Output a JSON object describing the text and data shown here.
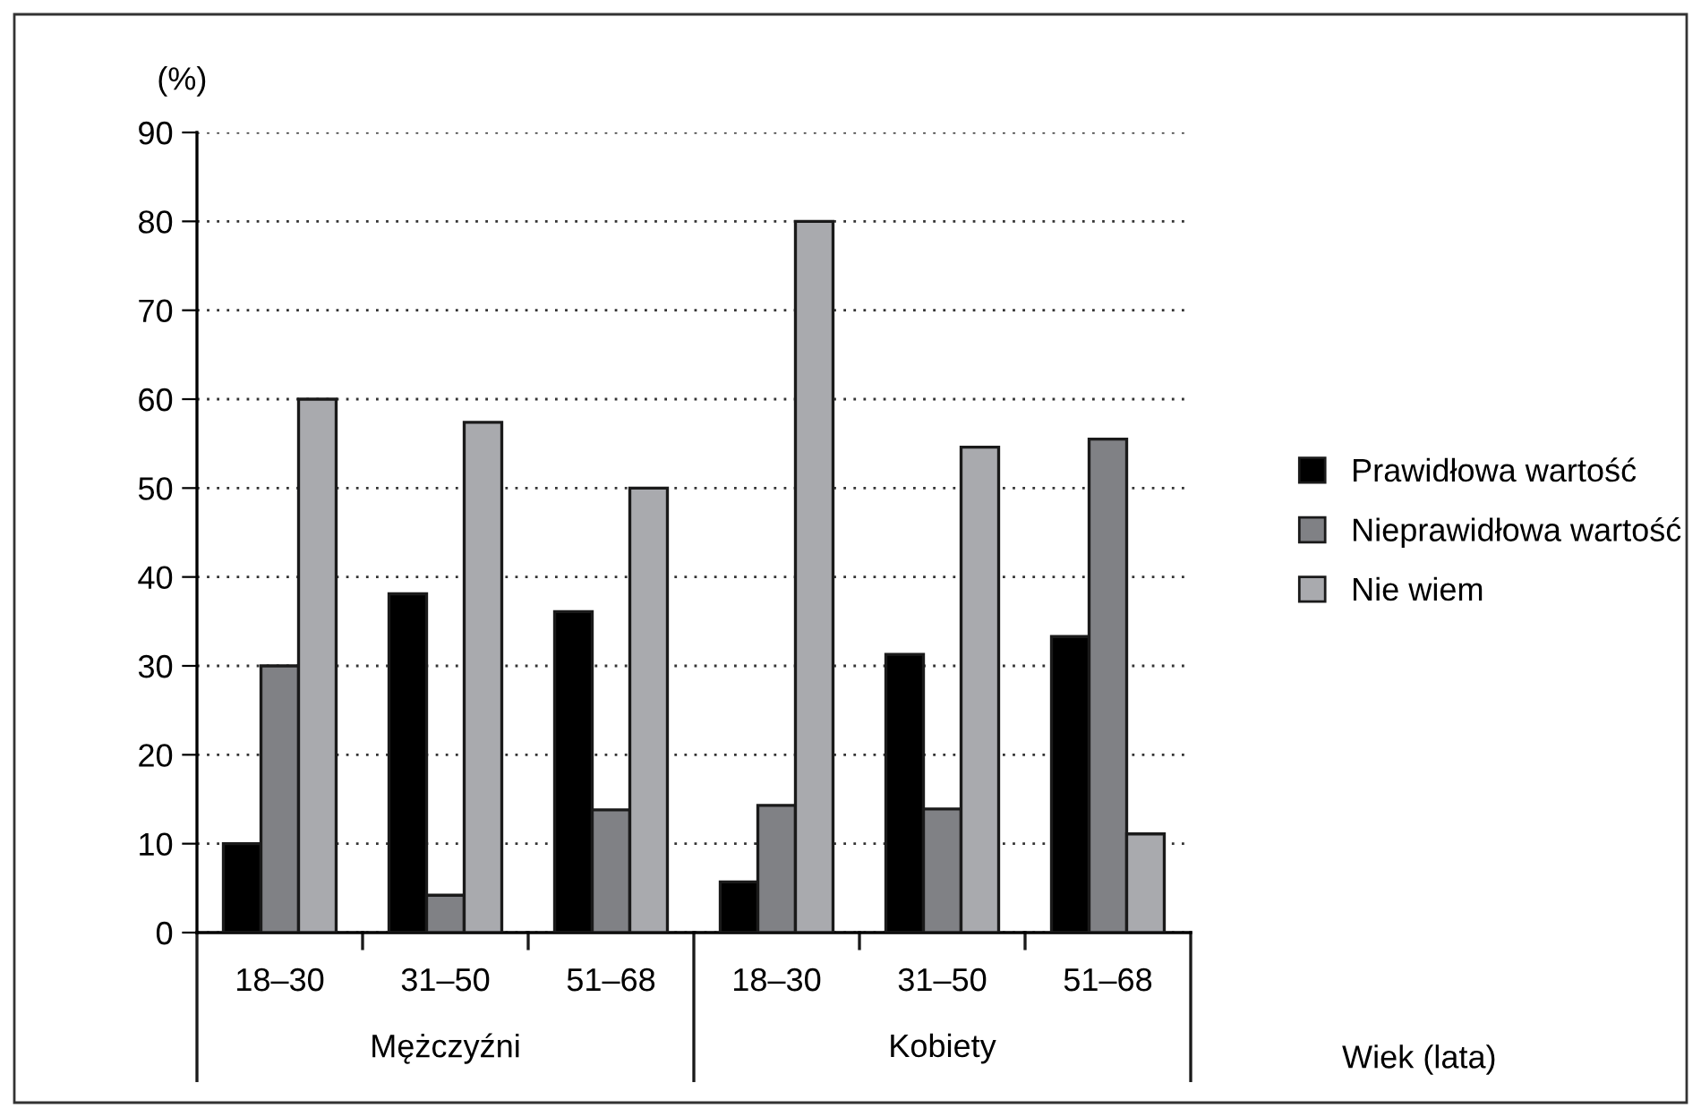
{
  "chart_data": {
    "type": "bar",
    "categories": [
      "18–30",
      "31–50",
      "51–68",
      "18–30",
      "31–50",
      "51–68"
    ],
    "series": [
      {
        "name": "Prawidłowa wartość",
        "color": "#000000",
        "values": [
          10,
          38.1,
          36.1,
          5.7,
          31.3,
          33.3
        ]
      },
      {
        "name": "Nieprawidłowa wartość",
        "color": "#808185",
        "values": [
          30,
          4.2,
          13.8,
          14.3,
          13.9,
          55.5
        ]
      },
      {
        "name": "Nie wiem",
        "color": "#a9aaae",
        "values": [
          60,
          57.4,
          50,
          80,
          54.6,
          11.1
        ]
      }
    ],
    "ylabel": "(%)",
    "xlabel": "Wiek (lata)",
    "annotations": [
      "Mężczyźni",
      "Kobiety"
    ],
    "ylim": [
      0,
      90
    ],
    "yticks": [
      0,
      10,
      20,
      30,
      40,
      50,
      60,
      70,
      80,
      90
    ],
    "grid": "y",
    "legend": "right"
  }
}
